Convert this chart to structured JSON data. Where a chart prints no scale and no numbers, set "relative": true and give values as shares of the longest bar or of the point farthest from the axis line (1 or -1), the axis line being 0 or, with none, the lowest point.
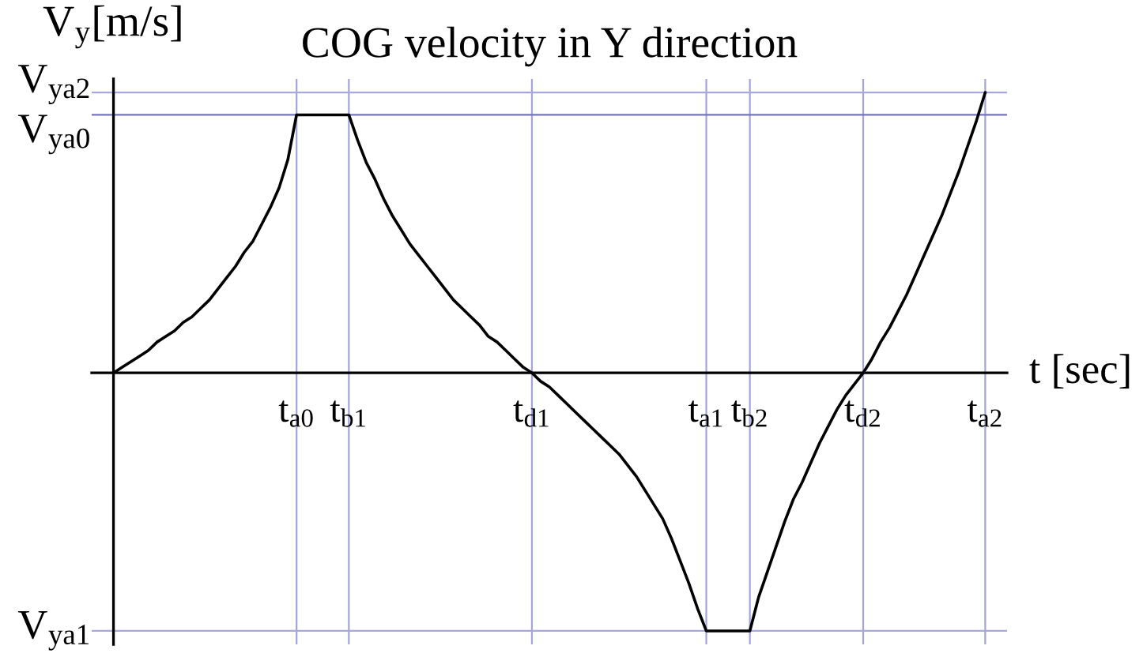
{
  "chart_data": {
    "type": "line",
    "title": "COG velocity in Y direction",
    "xlabel": "t [sec]",
    "ylabel": "V$_{y}$[m/s]",
    "relative": true,
    "categories": [
      null,
      null,
      null,
      null,
      null,
      null,
      null,
      null,
      null,
      null,
      null,
      null,
      null,
      null,
      null,
      null,
      null,
      null,
      null,
      null,
      null,
      "t$_{a0}$",
      null,
      null,
      null,
      null,
      null,
      "t$_{b1}$",
      null,
      null,
      null,
      null,
      null,
      null,
      null,
      null,
      null,
      null,
      null,
      null,
      null,
      null,
      null,
      null,
      null,
      null,
      null,
      null,
      "t$_{d1}$",
      null,
      null,
      null,
      null,
      null,
      null,
      null,
      null,
      null,
      null,
      null,
      null,
      null,
      null,
      null,
      null,
      null,
      null,
      null,
      "t$_{a1}$",
      null,
      null,
      null,
      null,
      "t$_{b2}$",
      null,
      null,
      null,
      null,
      null,
      null,
      null,
      null,
      null,
      null,
      null,
      null,
      "t$_{d2}$",
      null,
      null,
      null,
      null,
      null,
      null,
      null,
      null,
      null,
      null,
      null,
      null,
      null,
      "t$_{a2}$"
    ],
    "series": [
      {
        "color": "#000000",
        "values": [
          0,
          0.02,
          0.04,
          0.06,
          0.08,
          0.11,
          0.13,
          0.15,
          0.18,
          0.2,
          0.23,
          0.26,
          0.3,
          0.34,
          0.38,
          0.43,
          0.47,
          0.53,
          0.59,
          0.66,
          0.76,
          0.92,
          0.92,
          0.92,
          0.92,
          0.92,
          0.92,
          0.92,
          0.83,
          0.75,
          0.69,
          0.62,
          0.56,
          0.51,
          0.46,
          0.42,
          0.38,
          0.34,
          0.3,
          0.26,
          0.23,
          0.2,
          0.17,
          0.13,
          0.11,
          0.08,
          0.05,
          0.02,
          0,
          -0.03,
          -0.05,
          -0.08,
          -0.11,
          -0.14,
          -0.17,
          -0.2,
          -0.23,
          -0.26,
          -0.29,
          -0.33,
          -0.37,
          -0.42,
          -0.47,
          -0.52,
          -0.59,
          -0.67,
          -0.75,
          -0.84,
          -0.92,
          -0.92,
          -0.92,
          -0.92,
          -0.92,
          -0.92,
          -0.8,
          -0.71,
          -0.62,
          -0.53,
          -0.45,
          -0.39,
          -0.32,
          -0.25,
          -0.19,
          -0.13,
          -0.08,
          -0.04,
          0,
          0.05,
          0.11,
          0.16,
          0.22,
          0.28,
          0.35,
          0.42,
          0.49,
          0.56,
          0.64,
          0.72,
          0.81,
          0.9,
          1
        ]
      }
    ],
    "ref_lines": [
      {
        "axis": "y",
        "value": 1,
        "label": "V$_{ya2}$",
        "color": "#a8a8dc"
      },
      {
        "axis": "y",
        "value": 0.92,
        "label": "V$_{ya0}$",
        "color": "#7474be"
      },
      {
        "axis": "y",
        "value": -0.92,
        "label": "V$_{ya1}$",
        "color": "#a8a8dc"
      }
    ],
    "grid": "x"
  }
}
